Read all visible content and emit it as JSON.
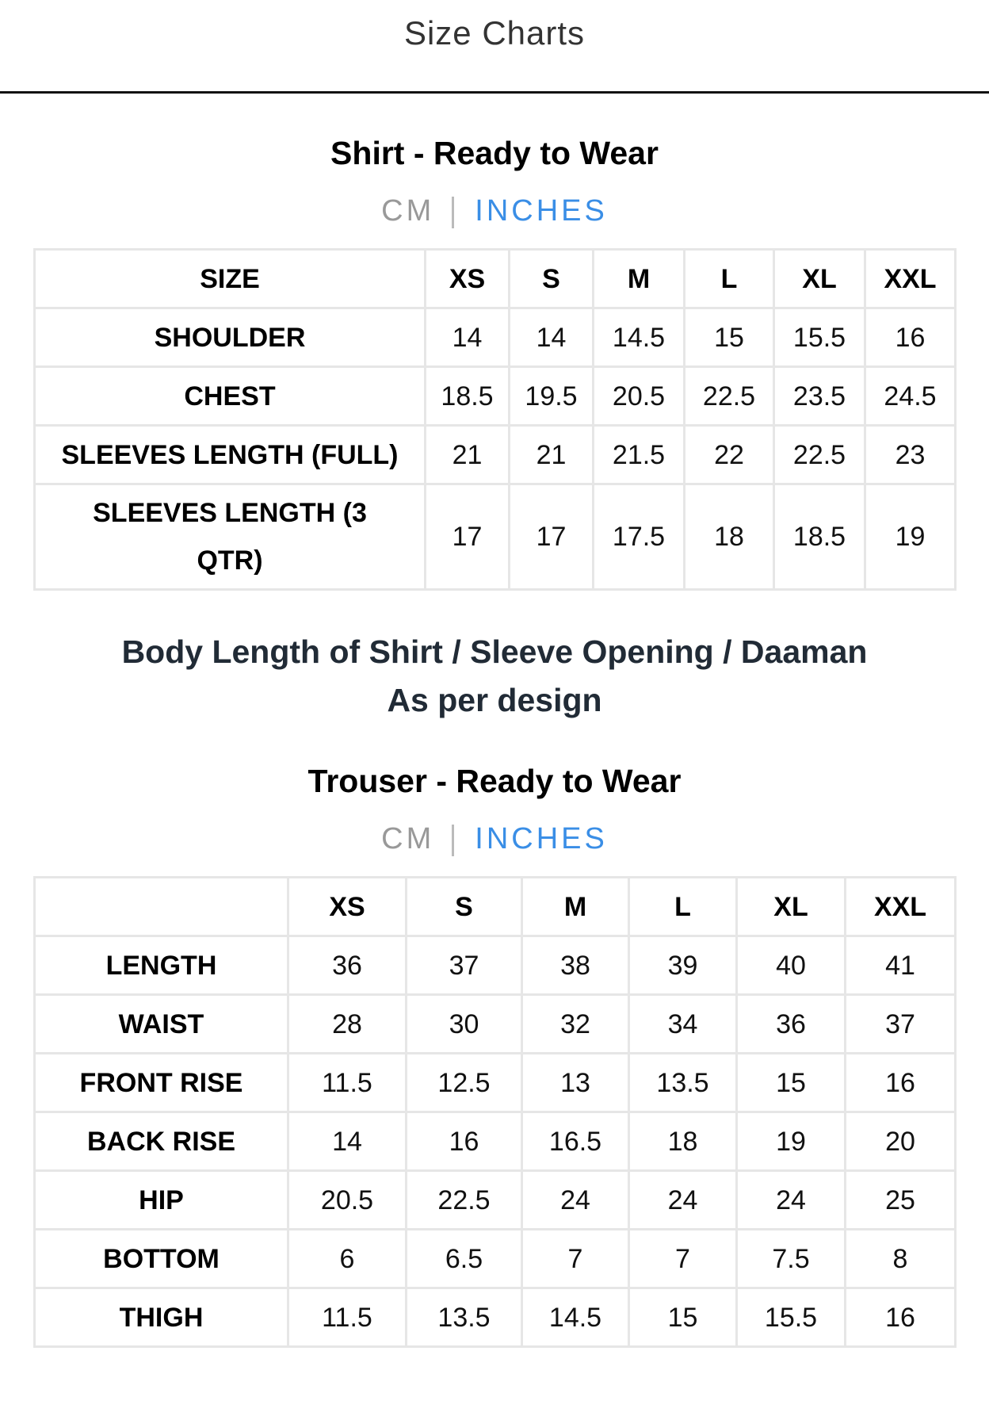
{
  "header": {
    "title": "Size Charts"
  },
  "shirt": {
    "title": "Shirt - Ready to Wear",
    "units": {
      "cm": "CM",
      "inches": "INCHES",
      "active": "INCHES"
    },
    "columns": [
      "SIZE",
      "XS",
      "S",
      "M",
      "L",
      "XL",
      "XXL"
    ],
    "rows": [
      {
        "label": "SHOULDER",
        "values": [
          "14",
          "14",
          "14.5",
          "15",
          "15.5",
          "16"
        ]
      },
      {
        "label": "CHEST",
        "values": [
          "18.5",
          "19.5",
          "20.5",
          "22.5",
          "23.5",
          "24.5"
        ]
      },
      {
        "label": "SLEEVES LENGTH (FULL)",
        "values": [
          "21",
          "21",
          "21.5",
          "22",
          "22.5",
          "23"
        ]
      },
      {
        "label": "SLEEVES LENGTH (3 QTR)",
        "values": [
          "17",
          "17",
          "17.5",
          "18",
          "18.5",
          "19"
        ]
      }
    ]
  },
  "note": {
    "line1": "Body Length of Shirt / Sleeve Opening / Daaman",
    "line2": "As per design"
  },
  "trouser": {
    "title": "Trouser - Ready to Wear",
    "units": {
      "cm": "CM",
      "inches": "INCHES",
      "active": "INCHES"
    },
    "columns": [
      "",
      "XS",
      "S",
      "M",
      "L",
      "XL",
      "XXL"
    ],
    "rows": [
      {
        "label": "LENGTH",
        "values": [
          "36",
          "37",
          "38",
          "39",
          "40",
          "41"
        ]
      },
      {
        "label": "WAIST",
        "values": [
          "28",
          "30",
          "32",
          "34",
          "36",
          "37"
        ]
      },
      {
        "label": "FRONT RISE",
        "values": [
          "11.5",
          "12.5",
          "13",
          "13.5",
          "15",
          "16"
        ]
      },
      {
        "label": "BACK RISE",
        "values": [
          "14",
          "16",
          "16.5",
          "18",
          "19",
          "20"
        ]
      },
      {
        "label": "HIP",
        "values": [
          "20.5",
          "22.5",
          "24",
          "24",
          "24",
          "25"
        ]
      },
      {
        "label": "BOTTOM",
        "values": [
          "6",
          "6.5",
          "7",
          "7",
          "7.5",
          "8"
        ]
      },
      {
        "label": "THIGH",
        "values": [
          "11.5",
          "13.5",
          "14.5",
          "15",
          "15.5",
          "16"
        ]
      }
    ]
  },
  "colors": {
    "accent": "#3a8ee6",
    "inactive": "#999999",
    "note": "#212b36",
    "border": "#e6e6e6"
  }
}
